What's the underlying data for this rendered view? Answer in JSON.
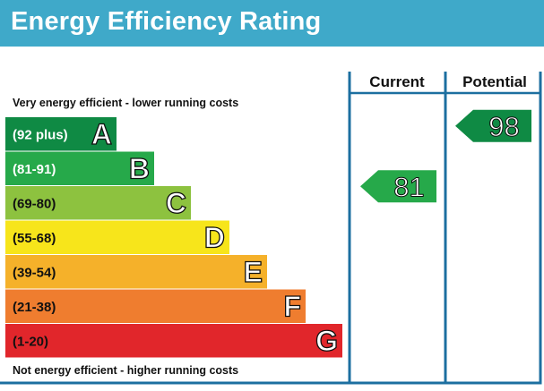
{
  "title": "Energy Efficiency Rating",
  "columns": {
    "current": "Current",
    "potential": "Potential"
  },
  "captions": {
    "top": "Very energy efficient - lower running costs",
    "bottom": "Not energy efficient - higher running costs"
  },
  "colors": {
    "header": "#3fa9c9",
    "frame": "#1c6fa0"
  },
  "chart_data": {
    "type": "bar",
    "categories": [
      "A",
      "B",
      "C",
      "D",
      "E",
      "F",
      "G"
    ],
    "bands": [
      {
        "letter": "A",
        "range": "(92 plus)",
        "color": "#0f8a44",
        "text_color": "#ffffff"
      },
      {
        "letter": "B",
        "range": "(81-91)",
        "color": "#26a94a",
        "text_color": "#ffffff"
      },
      {
        "letter": "C",
        "range": "(69-80)",
        "color": "#8dc23f",
        "text_color": "#111111"
      },
      {
        "letter": "D",
        "range": "(55-68)",
        "color": "#f7e51b",
        "text_color": "#111111"
      },
      {
        "letter": "E",
        "range": "(39-54)",
        "color": "#f5b12a",
        "text_color": "#111111"
      },
      {
        "letter": "F",
        "range": "(21-38)",
        "color": "#ef7d2f",
        "text_color": "#111111"
      },
      {
        "letter": "G",
        "range": "(1-20)",
        "color": "#e1262b",
        "text_color": "#111111"
      }
    ],
    "ratings": {
      "current": {
        "value": 81,
        "band": "B",
        "color": "#26a94a"
      },
      "potential": {
        "value": 98,
        "band": "A",
        "color": "#0f8a44"
      }
    }
  }
}
